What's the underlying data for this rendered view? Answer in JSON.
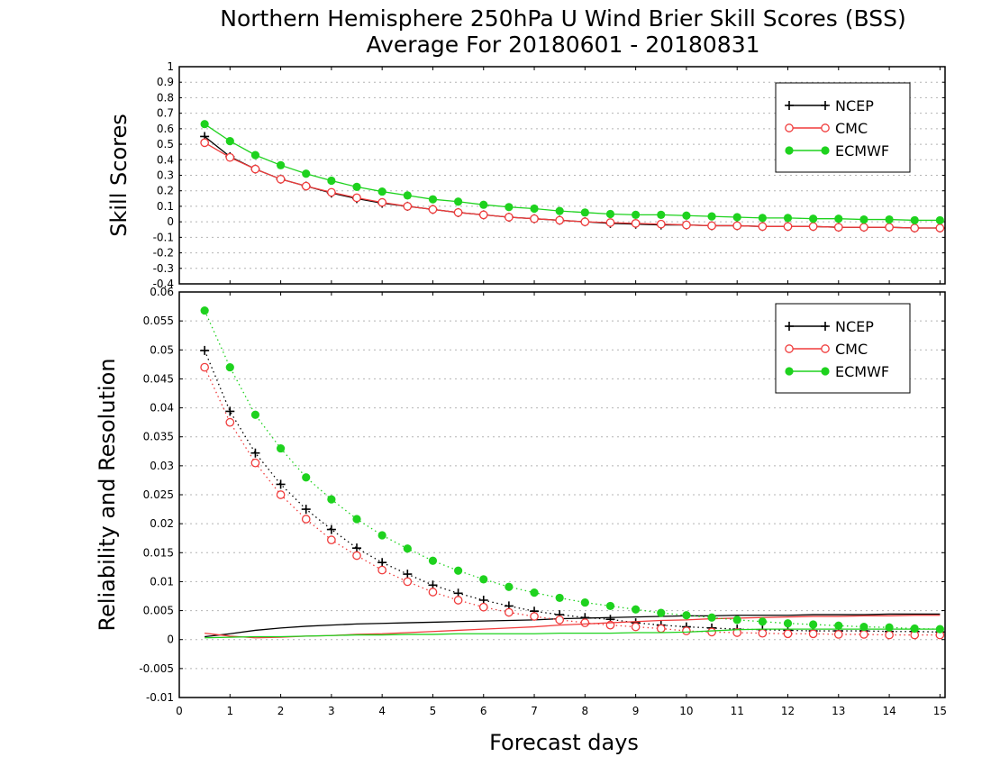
{
  "figure": {
    "title_line1": "Northern Hemisphere 250hPa U Wind Brier Skill Scores (BSS)",
    "title_line2": "Average For 20180601 - 20180831",
    "xlabel": "Forecast days"
  },
  "colors": {
    "NCEP": "#000000",
    "CMC": "#f03c3c",
    "ECMWF": "#1ed21e",
    "grid": "#b4b4b4"
  },
  "chart_data": [
    {
      "type": "line",
      "panel": "top",
      "ylabel": "Skill Scores",
      "xlim": [
        0,
        15.1
      ],
      "ylim": [
        -0.4,
        1
      ],
      "x_ticks": [
        0,
        1,
        2,
        3,
        4,
        5,
        6,
        7,
        8,
        9,
        10,
        11,
        12,
        13,
        14,
        15
      ],
      "y_ticks": [
        "1",
        "0.9",
        "0.8",
        "0.7",
        "0.6",
        "0.5",
        "0.4",
        "0.3",
        "0.2",
        "0.1",
        "0",
        "-0.1",
        "-0.2",
        "-0.3",
        "-0.4"
      ],
      "grid": "horizontal dotted",
      "legend_position": "top-right",
      "x": [
        0.5,
        1,
        1.5,
        2,
        2.5,
        3,
        3.5,
        4,
        4.5,
        5,
        5.5,
        6,
        6.5,
        7,
        7.5,
        8,
        8.5,
        9,
        9.5,
        10,
        10.5,
        11,
        11.5,
        12,
        12.5,
        13,
        13.5,
        14,
        14.5,
        15
      ],
      "series": [
        {
          "name": "NCEP",
          "marker": "plus",
          "linestyle": "solid",
          "values": [
            0.55,
            0.42,
            0.34,
            0.275,
            0.23,
            0.185,
            0.15,
            0.12,
            0.1,
            0.08,
            0.06,
            0.045,
            0.03,
            0.02,
            0.01,
            0.0,
            -0.01,
            -0.015,
            -0.02,
            -0.02,
            -0.025,
            -0.025,
            -0.03,
            -0.03,
            -0.03,
            -0.035,
            -0.035,
            -0.035,
            -0.04,
            -0.04
          ]
        },
        {
          "name": "CMC",
          "marker": "open-circle",
          "linestyle": "solid",
          "values": [
            0.51,
            0.415,
            0.34,
            0.275,
            0.23,
            0.19,
            0.155,
            0.125,
            0.1,
            0.08,
            0.06,
            0.045,
            0.03,
            0.02,
            0.01,
            0.0,
            -0.005,
            -0.01,
            -0.015,
            -0.02,
            -0.025,
            -0.025,
            -0.03,
            -0.03,
            -0.03,
            -0.035,
            -0.035,
            -0.035,
            -0.04,
            -0.04
          ]
        },
        {
          "name": "ECMWF",
          "marker": "filled-circle",
          "linestyle": "solid",
          "values": [
            0.63,
            0.52,
            0.43,
            0.365,
            0.31,
            0.265,
            0.225,
            0.195,
            0.17,
            0.145,
            0.13,
            0.11,
            0.095,
            0.085,
            0.07,
            0.06,
            0.05,
            0.045,
            0.045,
            0.04,
            0.035,
            0.03,
            0.025,
            0.025,
            0.02,
            0.02,
            0.015,
            0.015,
            0.01,
            0.01
          ]
        }
      ]
    },
    {
      "type": "line",
      "panel": "bottom",
      "ylabel": "Reliability and Resolution",
      "xlim": [
        0,
        15.1
      ],
      "ylim": [
        -0.01,
        0.06
      ],
      "x_ticks": [
        0,
        1,
        2,
        3,
        4,
        5,
        6,
        7,
        8,
        9,
        10,
        11,
        12,
        13,
        14,
        15
      ],
      "y_ticks": [
        "0.06",
        "0.055",
        "0.05",
        "0.045",
        "0.04",
        "0.035",
        "0.03",
        "0.025",
        "0.02",
        "0.015",
        "0.01",
        "0.005",
        "0",
        "-0.005",
        "-0.01"
      ],
      "grid": "horizontal dotted",
      "legend_position": "top-right",
      "x": [
        0.5,
        1,
        1.5,
        2,
        2.5,
        3,
        3.5,
        4,
        4.5,
        5,
        5.5,
        6,
        6.5,
        7,
        7.5,
        8,
        8.5,
        9,
        9.5,
        10,
        10.5,
        11,
        11.5,
        12,
        12.5,
        13,
        13.5,
        14,
        14.5,
        15
      ],
      "series": [
        {
          "name": "NCEP",
          "component": "resolution",
          "marker": "plus",
          "linestyle": "dotted",
          "values": [
            0.0499,
            0.0394,
            0.0322,
            0.0268,
            0.0225,
            0.019,
            0.0158,
            0.0133,
            0.0113,
            0.0094,
            0.008,
            0.0068,
            0.0058,
            0.0049,
            0.0043,
            0.0038,
            0.0035,
            0.0029,
            0.0025,
            0.0022,
            0.002,
            0.0018,
            0.0017,
            0.0016,
            0.0015,
            0.0015,
            0.0015,
            0.0014,
            0.0014,
            0.0013
          ]
        },
        {
          "name": "NCEP",
          "component": "reliability",
          "marker": "none",
          "linestyle": "solid",
          "values": [
            0.0005,
            0.001,
            0.0016,
            0.002,
            0.0023,
            0.0025,
            0.0027,
            0.0028,
            0.0029,
            0.003,
            0.0031,
            0.0032,
            0.0033,
            0.0034,
            0.0036,
            0.0037,
            0.0038,
            0.0039,
            0.004,
            0.0041,
            0.0041,
            0.0042,
            0.0042,
            0.0042,
            0.0043,
            0.0043,
            0.0043,
            0.0044,
            0.0044,
            0.0044
          ]
        },
        {
          "name": "CMC",
          "component": "resolution",
          "marker": "open-circle",
          "linestyle": "dotted",
          "values": [
            0.047,
            0.0375,
            0.0305,
            0.025,
            0.0208,
            0.0172,
            0.0145,
            0.012,
            0.01,
            0.0082,
            0.0068,
            0.0056,
            0.0047,
            0.004,
            0.0034,
            0.0029,
            0.0025,
            0.0022,
            0.0019,
            0.0015,
            0.0013,
            0.0012,
            0.0011,
            0.001,
            0.001,
            0.0009,
            0.0009,
            0.0008,
            0.0008,
            0.0008
          ]
        },
        {
          "name": "CMC",
          "component": "reliability",
          "marker": "none",
          "linestyle": "solid",
          "values": [
            0.0011,
            0.0006,
            0.0003,
            0.0004,
            0.0006,
            0.0007,
            0.0009,
            0.001,
            0.0012,
            0.0014,
            0.0016,
            0.0018,
            0.002,
            0.0022,
            0.0025,
            0.0027,
            0.0029,
            0.0031,
            0.0033,
            0.0034,
            0.0036,
            0.0037,
            0.0038,
            0.0039,
            0.004,
            0.004,
            0.0041,
            0.0041,
            0.0042,
            0.0042
          ]
        },
        {
          "name": "ECMWF",
          "component": "resolution",
          "marker": "filled-circle",
          "linestyle": "dotted",
          "values": [
            0.0568,
            0.047,
            0.0388,
            0.033,
            0.028,
            0.0242,
            0.0208,
            0.018,
            0.0157,
            0.0136,
            0.0119,
            0.0104,
            0.0091,
            0.0081,
            0.0072,
            0.0064,
            0.0058,
            0.0052,
            0.0046,
            0.0042,
            0.0038,
            0.0034,
            0.0031,
            0.0028,
            0.0026,
            0.0024,
            0.0022,
            0.0021,
            0.0019,
            0.0018
          ]
        },
        {
          "name": "ECMWF",
          "component": "reliability",
          "marker": "none",
          "linestyle": "solid",
          "values": [
            0.0003,
            0.0004,
            0.0005,
            0.0005,
            0.0006,
            0.0007,
            0.0008,
            0.0008,
            0.0009,
            0.0009,
            0.001,
            0.001,
            0.001,
            0.001,
            0.0011,
            0.0011,
            0.0011,
            0.0012,
            0.0012,
            0.0013,
            0.0015,
            0.0017,
            0.0018,
            0.0018,
            0.0018,
            0.0018,
            0.0018,
            0.0018,
            0.0018,
            0.0018
          ]
        }
      ]
    }
  ]
}
